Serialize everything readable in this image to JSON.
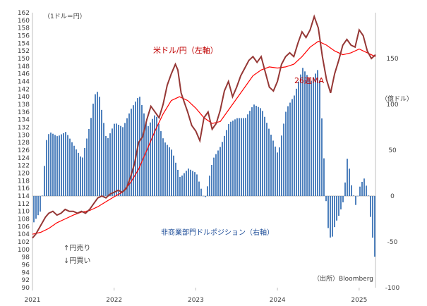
{
  "chart_data": {
    "type": "bar",
    "title": "",
    "left_axis_unit": "（1ドル＝円）",
    "right_axis_unit": "（億ドル）",
    "left_ylim": [
      90,
      162
    ],
    "left_ticks": [
      90,
      92,
      94,
      96,
      98,
      100,
      102,
      104,
      106,
      108,
      110,
      112,
      114,
      116,
      118,
      120,
      122,
      124,
      126,
      128,
      130,
      132,
      134,
      136,
      138,
      140,
      142,
      144,
      146,
      148,
      150,
      152,
      154,
      156,
      158,
      160,
      162
    ],
    "right_ylim": [
      -100,
      200
    ],
    "right_ticks": [
      -100,
      -50,
      0,
      50,
      100,
      150
    ],
    "x_ticks": [
      "2021",
      "2022",
      "2023",
      "2024",
      "2025"
    ],
    "x_range": [
      2021.0,
      2025.2
    ],
    "series": [
      {
        "name": "米ドル/円（左軸）",
        "type": "line",
        "axis": "left",
        "color": "#953735",
        "x": [
          2021.0,
          2021.04,
          2021.08,
          2021.12,
          2021.16,
          2021.2,
          2021.25,
          2021.3,
          2021.35,
          2021.4,
          2021.45,
          2021.5,
          2021.55,
          2021.6,
          2021.65,
          2021.7,
          2021.75,
          2021.8,
          2021.85,
          2021.9,
          2021.95,
          2022.0,
          2022.05,
          2022.1,
          2022.15,
          2022.2,
          2022.25,
          2022.3,
          2022.35,
          2022.4,
          2022.45,
          2022.5,
          2022.55,
          2022.6,
          2022.65,
          2022.7,
          2022.75,
          2022.78,
          2022.82,
          2022.86,
          2022.9,
          2022.95,
          2023.0,
          2023.05,
          2023.1,
          2023.15,
          2023.2,
          2023.25,
          2023.3,
          2023.35,
          2023.4,
          2023.45,
          2023.5,
          2023.55,
          2023.6,
          2023.65,
          2023.7,
          2023.75,
          2023.8,
          2023.85,
          2023.9,
          2023.95,
          2024.0,
          2024.05,
          2024.1,
          2024.15,
          2024.2,
          2024.25,
          2024.3,
          2024.35,
          2024.4,
          2024.45,
          2024.5,
          2024.55,
          2024.6,
          2024.65,
          2024.7,
          2024.75,
          2024.8,
          2024.85,
          2024.9,
          2024.95,
          2025.0,
          2025.05,
          2025.1,
          2025.15,
          2025.2
        ],
        "values": [
          103.0,
          104.0,
          105.5,
          107.0,
          108.5,
          109.5,
          110.0,
          109.0,
          109.5,
          110.5,
          110.0,
          110.0,
          109.5,
          110.0,
          109.5,
          110.5,
          112.0,
          113.5,
          114.0,
          113.5,
          114.5,
          115.0,
          115.5,
          115.0,
          116.0,
          119.0,
          122.5,
          128.0,
          129.5,
          134.0,
          137.5,
          136.0,
          134.5,
          138.0,
          143.0,
          146.0,
          148.5,
          147.0,
          141.0,
          138.5,
          136.0,
          132.5,
          131.0,
          128.5,
          134.5,
          136.0,
          131.5,
          133.0,
          136.5,
          141.5,
          144.0,
          140.0,
          142.5,
          145.5,
          147.5,
          149.5,
          150.5,
          149.0,
          150.5,
          146.5,
          142.5,
          141.5,
          144.0,
          148.5,
          150.5,
          151.5,
          150.5,
          154.0,
          157.0,
          155.5,
          157.5,
          161.0,
          158.0,
          150.5,
          144.5,
          141.0,
          146.0,
          149.5,
          153.5,
          155.0,
          153.5,
          153.0,
          157.5,
          156.0,
          152.0,
          150.0,
          151.0
        ]
      },
      {
        "name": "26週MA",
        "type": "line",
        "axis": "left",
        "color": "#ff0000",
        "x": [
          2021.0,
          2021.1,
          2021.2,
          2021.3,
          2021.4,
          2021.5,
          2021.6,
          2021.7,
          2021.8,
          2021.9,
          2022.0,
          2022.1,
          2022.2,
          2022.3,
          2022.4,
          2022.5,
          2022.6,
          2022.7,
          2022.8,
          2022.9,
          2023.0,
          2023.1,
          2023.2,
          2023.3,
          2023.4,
          2023.5,
          2023.6,
          2023.7,
          2023.8,
          2023.9,
          2024.0,
          2024.1,
          2024.2,
          2024.3,
          2024.4,
          2024.5,
          2024.6,
          2024.7,
          2024.8,
          2024.9,
          2025.0,
          2025.1,
          2025.2
        ],
        "values": [
          104.0,
          104.5,
          105.5,
          107.0,
          108.0,
          109.0,
          109.8,
          110.2,
          111.2,
          112.5,
          113.8,
          115.0,
          117.5,
          121.0,
          126.0,
          131.0,
          135.5,
          139.0,
          140.0,
          139.0,
          137.0,
          134.5,
          133.0,
          133.5,
          136.5,
          139.5,
          142.5,
          145.5,
          147.0,
          147.8,
          147.5,
          147.8,
          148.5,
          150.5,
          153.0,
          154.5,
          153.5,
          152.0,
          151.0,
          151.5,
          152.5,
          151.5,
          150.5
        ]
      },
      {
        "name": "非商業部門ドルポジション（右軸）",
        "type": "bar",
        "axis": "right",
        "color": "#4f81bd",
        "x": [
          2021.0,
          2021.1,
          2021.16,
          2021.2,
          2021.3,
          2021.4,
          2021.5,
          2021.6,
          2021.7,
          2021.75,
          2021.8,
          2021.9,
          2022.0,
          2022.1,
          2022.2,
          2022.3,
          2022.4,
          2022.5,
          2022.6,
          2022.7,
          2022.8,
          2022.9,
          2023.0,
          2023.1,
          2023.2,
          2023.3,
          2023.4,
          2023.5,
          2023.6,
          2023.7,
          2023.8,
          2023.9,
          2024.0,
          2024.1,
          2024.2,
          2024.3,
          2024.4,
          2024.5,
          2024.55,
          2024.6,
          2024.65,
          2024.7,
          2024.75,
          2024.8,
          2024.85,
          2024.9,
          2024.95,
          2025.0,
          2025.05,
          2025.1,
          2025.15,
          2025.2
        ],
        "values": [
          -30,
          -15,
          60,
          70,
          65,
          70,
          55,
          40,
          80,
          110,
          115,
          60,
          80,
          75,
          95,
          110,
          75,
          90,
          60,
          50,
          20,
          30,
          25,
          -5,
          40,
          55,
          80,
          85,
          85,
          100,
          95,
          70,
          45,
          95,
          110,
          140,
          125,
          140,
          60,
          -30,
          -50,
          -30,
          -20,
          -5,
          45,
          10,
          -10,
          10,
          20,
          5,
          -40,
          -80
        ]
      }
    ]
  },
  "annotations": {
    "usdjpy_label": "米ドル/円（左軸）",
    "ma_label": "26週MA",
    "position_label": "非商業部門ドルポジション（右軸）",
    "yen_sell": "↑円売り",
    "yen_buy": "↓円買い",
    "source": "（出所）Bloomberg"
  }
}
